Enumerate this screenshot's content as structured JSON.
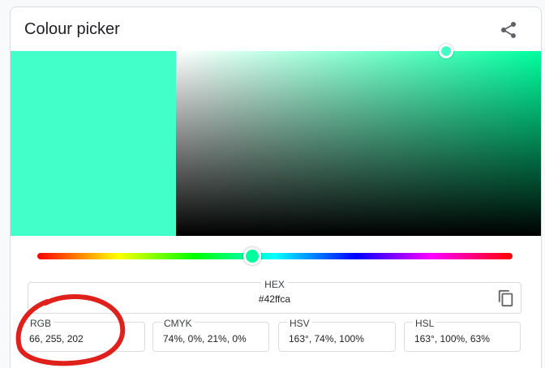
{
  "widget": {
    "title": "Colour picker",
    "share_icon": "share-icon"
  },
  "color": {
    "swatch": "#42ffca",
    "hue_color": "#00ff9f",
    "hue_deg": 163,
    "saturation_pct": 74,
    "value_pct": 100
  },
  "hex": {
    "label": "HEX",
    "value": "#42ffca",
    "copy_icon": "copy-icon"
  },
  "fields": [
    {
      "label": "RGB",
      "value": "66, 255, 202"
    },
    {
      "label": "CMYK",
      "value": "74%, 0%, 21%, 0%"
    },
    {
      "label": "HSV",
      "value": "163°, 74%, 100%"
    },
    {
      "label": "HSL",
      "value": "163°, 100%, 63%"
    }
  ],
  "annotation": {
    "type": "red-circle-highlight",
    "color": "#e0201b",
    "target": "RGB"
  }
}
